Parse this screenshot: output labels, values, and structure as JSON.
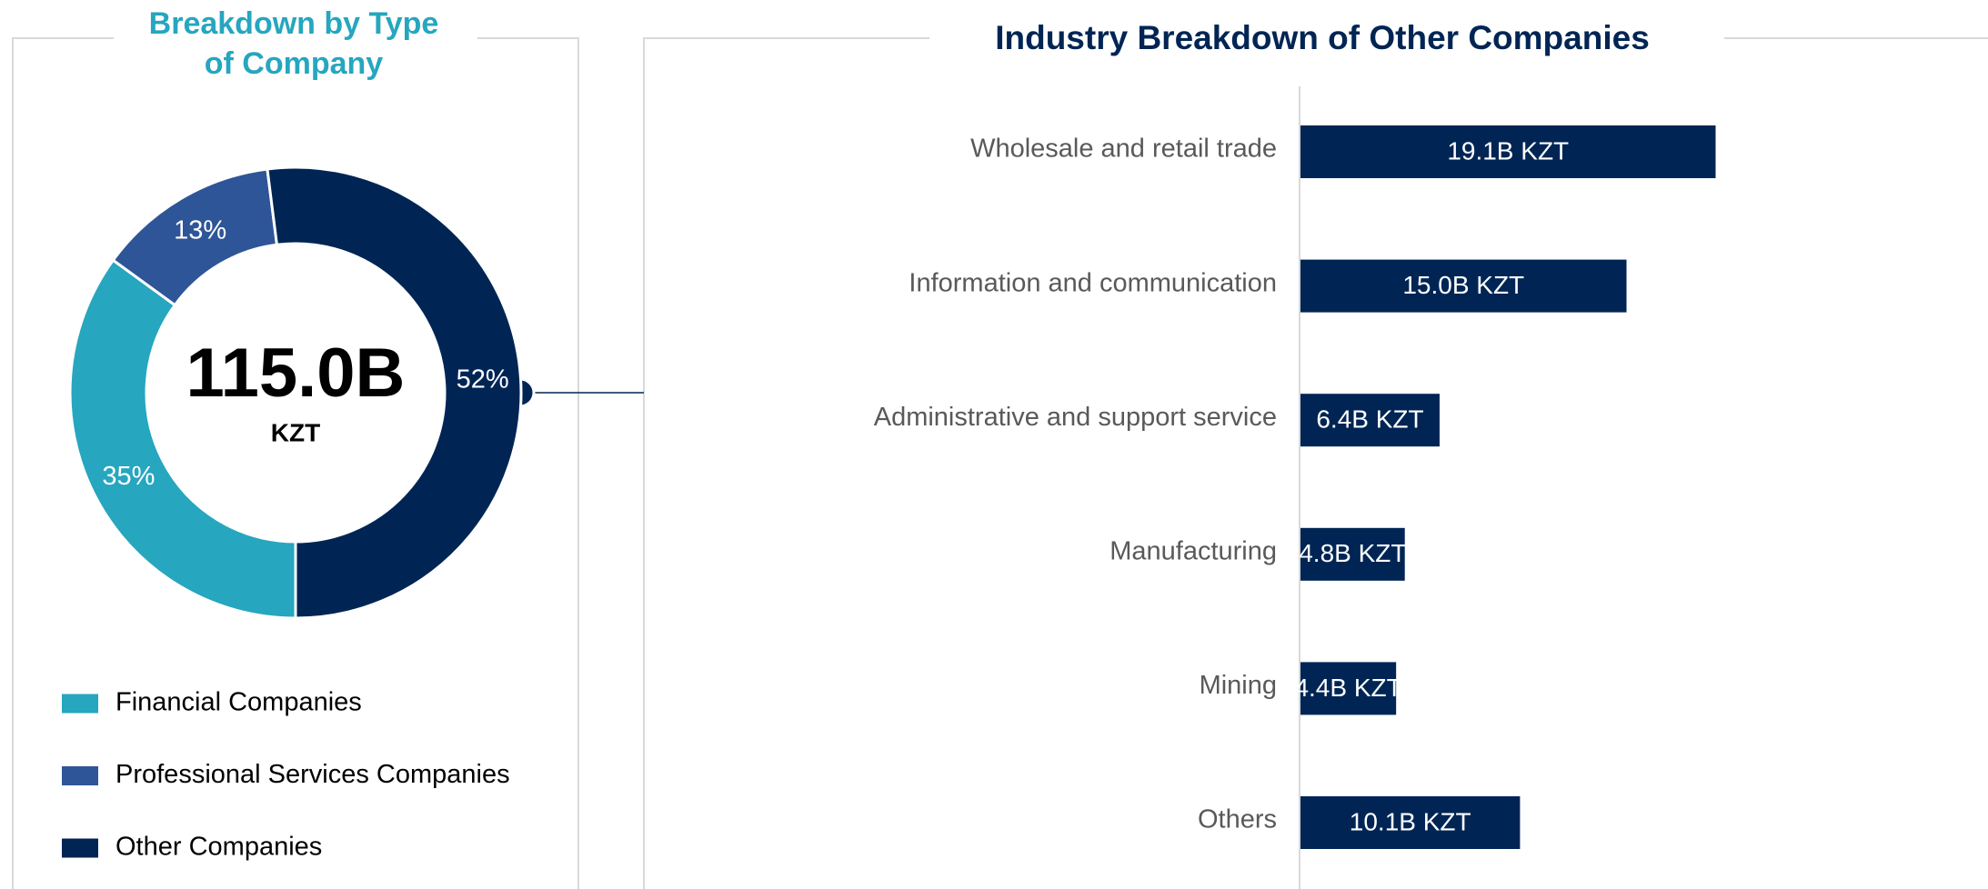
{
  "chart_data": [
    {
      "type": "donut",
      "title": "Breakdown by Type of Company",
      "center_value": "115.0B",
      "center_unit": "KZT",
      "categories": [
        "Financial Companies",
        "Professional Services Companies",
        "Other Companies"
      ],
      "values": [
        35,
        13,
        52
      ],
      "value_labels": [
        "35%",
        "13%",
        "52%"
      ],
      "colors": [
        "#26a6bf",
        "#2e5597",
        "#002554"
      ]
    },
    {
      "type": "bar",
      "orientation": "horizontal",
      "title": "Industry Breakdown of Other Companies",
      "categories": [
        "Wholesale and retail trade",
        "Information and communication",
        "Administrative and support service",
        "Manufacturing",
        "Mining",
        "Others"
      ],
      "values": [
        19.1,
        15.0,
        6.4,
        4.8,
        4.4,
        10.1
      ],
      "value_labels": [
        "19.1B KZT",
        "15.0B KZT",
        "6.4B KZT",
        "4.8B KZT",
        "4.4B KZT",
        "10.1B KZT"
      ],
      "color": "#002554",
      "xlim": [
        0,
        30
      ]
    }
  ]
}
